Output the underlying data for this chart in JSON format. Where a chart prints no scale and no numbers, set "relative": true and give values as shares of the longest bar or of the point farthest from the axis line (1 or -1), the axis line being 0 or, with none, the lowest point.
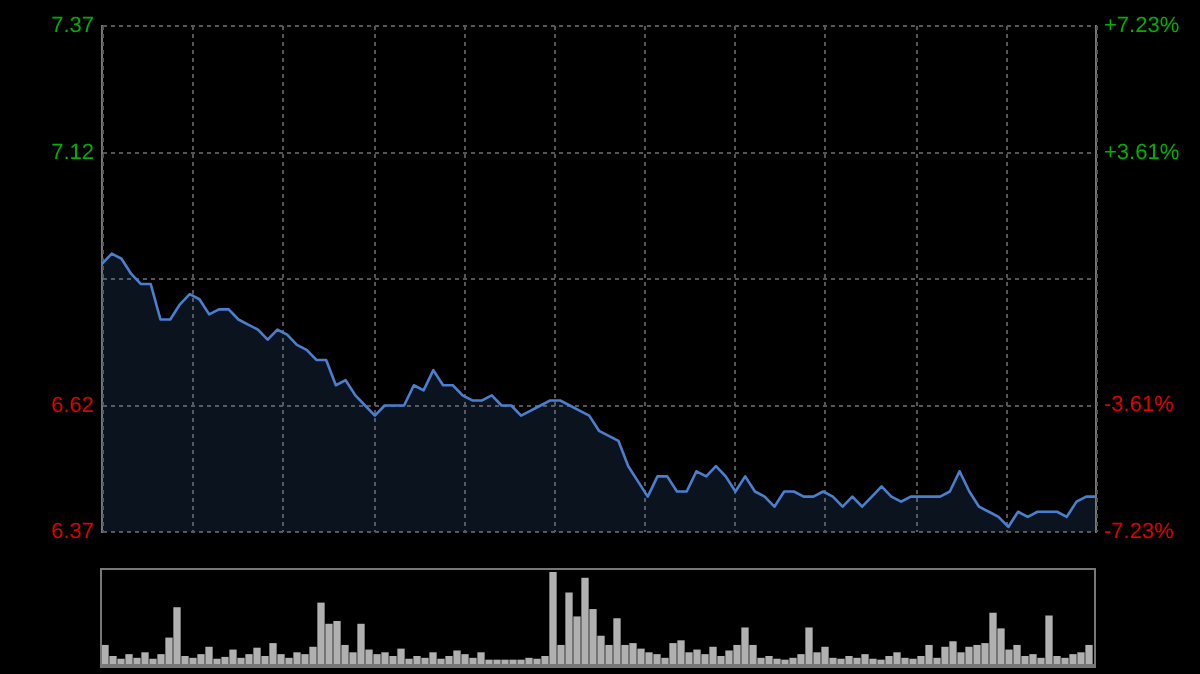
{
  "chart_data": [
    {
      "type": "area",
      "categories": [
        null,
        null,
        null,
        null,
        null,
        null,
        null,
        null,
        null,
        null,
        null,
        null,
        null,
        null,
        null,
        null,
        null,
        null,
        null,
        null,
        null,
        null,
        null,
        null,
        null,
        null,
        null,
        null,
        null,
        null,
        null,
        null,
        null,
        null,
        null,
        null,
        null,
        null,
        null,
        null,
        null,
        null,
        null,
        null,
        null,
        null,
        null,
        null,
        null,
        null,
        null,
        null,
        null,
        null,
        null,
        null,
        null,
        null,
        null,
        null,
        null,
        null,
        null,
        null,
        null,
        null,
        null,
        null,
        null,
        null,
        null,
        null,
        null,
        null,
        null,
        null,
        null,
        null,
        null,
        null,
        null,
        null,
        null,
        null,
        null,
        null,
        null,
        null,
        null,
        null,
        null,
        null,
        null,
        null,
        null,
        null,
        null,
        null,
        null,
        null,
        null,
        null,
        null
      ],
      "series": [
        {
          "color": "#4a7fd0",
          "values": [
            6.9,
            6.92,
            6.91,
            6.88,
            6.86,
            6.86,
            6.79,
            6.79,
            6.82,
            6.84,
            6.83,
            6.8,
            6.81,
            6.81,
            6.79,
            6.78,
            6.77,
            6.75,
            6.77,
            6.76,
            6.74,
            6.73,
            6.71,
            6.71,
            6.66,
            6.67,
            6.64,
            6.62,
            6.6,
            6.62,
            6.62,
            6.62,
            6.66,
            6.65,
            6.69,
            6.66,
            6.66,
            6.64,
            6.63,
            6.63,
            6.64,
            6.62,
            6.62,
            6.6,
            6.61,
            6.62,
            6.63,
            6.63,
            6.62,
            6.61,
            6.6,
            6.57,
            6.56,
            6.55,
            6.5,
            6.47,
            6.44,
            6.48,
            6.48,
            6.45,
            6.45,
            6.49,
            6.48,
            6.5,
            6.48,
            6.45,
            6.48,
            6.45,
            6.44,
            6.42,
            6.45,
            6.45,
            6.44,
            6.44,
            6.45,
            6.44,
            6.42,
            6.44,
            6.42,
            6.44,
            6.46,
            6.44,
            6.43,
            6.44,
            6.44,
            6.44,
            6.44,
            6.45,
            6.49,
            6.45,
            6.42,
            6.41,
            6.4,
            6.38,
            6.41,
            6.4,
            6.41,
            6.41,
            6.41,
            6.4,
            6.43,
            6.44,
            6.44
          ]
        }
      ],
      "ylim": [
        6.37,
        7.37
      ],
      "yticks": [
        6.37,
        6.62,
        {
          "value": 6.87,
          "label": null
        },
        7.12,
        7.37
      ],
      "y2lim": [
        -7.23,
        7.23
      ],
      "y2ticks": [
        {
          "value": -7.23,
          "label": "-7.23%"
        },
        {
          "value": -3.61,
          "label": "-3.61%"
        },
        {
          "value": 0,
          "label": null
        },
        {
          "value": 3.61,
          "label": "+3.61%"
        },
        {
          "value": 7.23,
          "label": "+7.23%"
        }
      ],
      "grid": true,
      "marker": "none",
      "line_style": "solid"
    },
    {
      "type": "bar",
      "relative": true,
      "categories": [
        null,
        null,
        null,
        null,
        null,
        null,
        null,
        null,
        null,
        null,
        null,
        null,
        null,
        null,
        null,
        null,
        null,
        null,
        null,
        null,
        null,
        null,
        null,
        null,
        null,
        null,
        null,
        null,
        null,
        null,
        null,
        null,
        null,
        null,
        null,
        null,
        null,
        null,
        null,
        null,
        null,
        null,
        null,
        null,
        null,
        null,
        null,
        null,
        null,
        null,
        null,
        null,
        null,
        null,
        null,
        null,
        null,
        null,
        null,
        null,
        null,
        null,
        null,
        null,
        null,
        null,
        null,
        null,
        null,
        null,
        null,
        null,
        null,
        null,
        null,
        null,
        null,
        null,
        null,
        null,
        null,
        null,
        null,
        null,
        null,
        null,
        null,
        null,
        null,
        null,
        null,
        null,
        null,
        null,
        null,
        null,
        null,
        null,
        null,
        null,
        null,
        null,
        null,
        null,
        null,
        null,
        null,
        null,
        null,
        null,
        null,
        null,
        null,
        null,
        null,
        null,
        null,
        null,
        null,
        null,
        null,
        null,
        null,
        null
      ],
      "color": "#b0b0b0",
      "values": [
        0.2,
        0.08,
        0.05,
        0.1,
        0.06,
        0.12,
        0.05,
        0.1,
        0.28,
        0.61,
        0.08,
        0.06,
        0.1,
        0.18,
        0.05,
        0.07,
        0.15,
        0.06,
        0.1,
        0.17,
        0.08,
        0.22,
        0.1,
        0.06,
        0.12,
        0.1,
        0.18,
        0.66,
        0.43,
        0.46,
        0.2,
        0.12,
        0.43,
        0.15,
        0.1,
        0.12,
        0.08,
        0.16,
        0.05,
        0.08,
        0.06,
        0.12,
        0.05,
        0.08,
        0.14,
        0.1,
        0.06,
        0.12,
        0.04,
        0.04,
        0.04,
        0.04,
        0.04,
        0.06,
        0.05,
        0.08,
        1,
        0.2,
        0.77,
        0.51,
        0.93,
        0.59,
        0.3,
        0.2,
        0.49,
        0.2,
        0.22,
        0.16,
        0.12,
        0.1,
        0.06,
        0.22,
        0.25,
        0.12,
        0.15,
        0.1,
        0.18,
        0.08,
        0.14,
        0.2,
        0.39,
        0.2,
        0.06,
        0.08,
        0.05,
        0.04,
        0.06,
        0.1,
        0.39,
        0.12,
        0.18,
        0.06,
        0.05,
        0.08,
        0.06,
        0.1,
        0.05,
        0.04,
        0.08,
        0.12,
        0.06,
        0.05,
        0.08,
        0.2,
        0.06,
        0.18,
        0.24,
        0.12,
        0.18,
        0.2,
        0.22,
        0.55,
        0.38,
        0.15,
        0.2,
        0.08,
        0.1,
        0.06,
        0.52,
        0.08,
        0.06,
        0.1,
        0.12,
        0.2
      ]
    }
  ]
}
